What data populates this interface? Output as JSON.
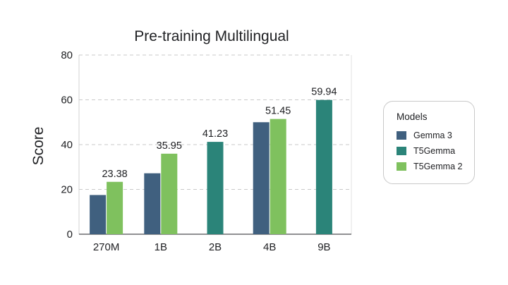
{
  "chart_data": {
    "type": "bar",
    "title": "Pre-training Multilingual",
    "ylabel": "Score",
    "xlabel": "",
    "ylim": [
      0,
      80
    ],
    "yticks": [
      0,
      20,
      40,
      60,
      80
    ],
    "grid": true,
    "legend_position": "right",
    "categories": [
      "270M",
      "1B",
      "2B",
      "4B",
      "9B"
    ],
    "series": [
      {
        "name": "Gemma 3",
        "color": "#40607f",
        "values": [
          17.5,
          27.2,
          null,
          50.0,
          null
        ],
        "labels": [
          null,
          null,
          null,
          null,
          null
        ]
      },
      {
        "name": "T5Gemma",
        "color": "#2b8479",
        "values": [
          null,
          null,
          41.23,
          null,
          59.94
        ],
        "labels": [
          null,
          null,
          "41.23",
          null,
          "59.94"
        ]
      },
      {
        "name": "T5Gemma 2",
        "color": "#7fc15e",
        "values": [
          23.38,
          35.95,
          null,
          51.45,
          null
        ],
        "labels": [
          "23.38",
          "35.95",
          null,
          "51.45",
          null
        ]
      }
    ]
  },
  "legend": {
    "title": "Models"
  }
}
